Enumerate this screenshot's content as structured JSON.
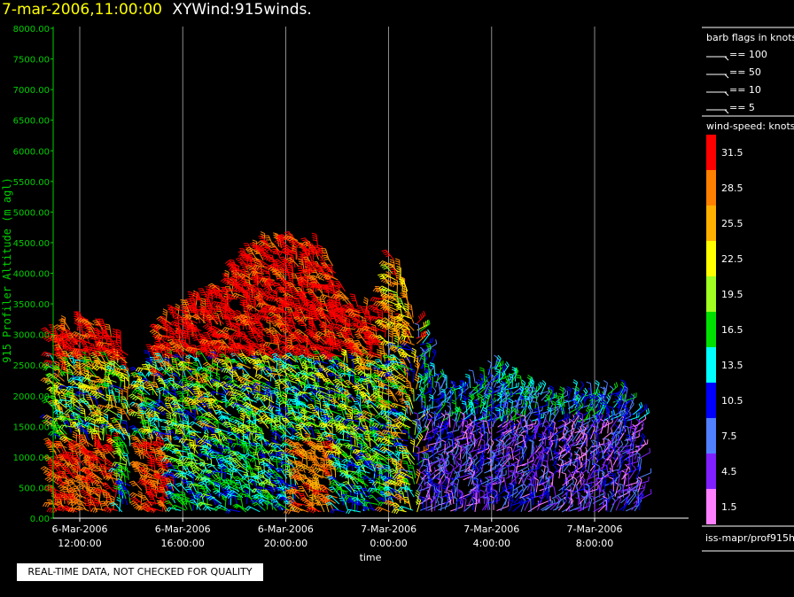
{
  "header": {
    "datetime": "7-mar-2006,11:00:00",
    "title": "XYWind:915winds."
  },
  "footer_note": "REAL-TIME DATA, NOT CHECKED FOR QUALITY",
  "source_label": "iss-mapr/prof915h",
  "chart_data": {
    "type": "wind-barbs",
    "ylabel": "915 Profiler Altitude (m agl)",
    "xlabel": "time",
    "ylim": [
      0,
      8000
    ],
    "y_ticks": [
      "0.00",
      "500.00",
      "1000.00",
      "1500.00",
      "2000.00",
      "2500.00",
      "3000.00",
      "3500.00",
      "4000.00",
      "4500.00",
      "5000.00",
      "5500.00",
      "6000.00",
      "6500.00",
      "7000.00",
      "7500.00",
      "8000.00"
    ],
    "x_range_hours": [
      10.5,
      22.8
    ],
    "x_ticks": [
      {
        "hour": 12,
        "line1": "6-Mar-2006",
        "line2": "12:00:00"
      },
      {
        "hour": 16,
        "line1": "6-Mar-2006",
        "line2": "16:00:00"
      },
      {
        "hour": 20,
        "line1": "6-Mar-2006",
        "line2": "20:00:00"
      },
      {
        "hour": 24,
        "line1": "7-Mar-2006",
        "line2": "0:00:00"
      },
      {
        "hour": 28,
        "line1": "7-Mar-2006",
        "line2": "4:00:00"
      },
      {
        "hour": 32,
        "line1": "7-Mar-2006",
        "line2": "8:00:00"
      }
    ],
    "profile_tops_m": [
      {
        "hour": 11.0,
        "top": 3000
      },
      {
        "hour": 12.0,
        "top": 3200
      },
      {
        "hour": 13.0,
        "top": 3150
      },
      {
        "hour": 14.5,
        "top": 2400
      },
      {
        "hour": 15.5,
        "top": 3300
      },
      {
        "hour": 16.5,
        "top": 3500
      },
      {
        "hour": 17.5,
        "top": 3700
      },
      {
        "hour": 18.5,
        "top": 4300
      },
      {
        "hour": 19.5,
        "top": 4500
      },
      {
        "hour": 20.5,
        "top": 4550
      },
      {
        "hour": 21.5,
        "top": 4400
      },
      {
        "hour": 22.5,
        "top": 3600
      },
      {
        "hour": 23.5,
        "top": 3300
      },
      {
        "hour": 24.3,
        "top": 4300
      },
      {
        "hour": 25.0,
        "top": 3300
      },
      {
        "hour": 26.0,
        "top": 2200
      },
      {
        "hour": 27.0,
        "top": 2100
      },
      {
        "hour": 28.0,
        "top": 2500
      },
      {
        "hour": 29.0,
        "top": 2200
      },
      {
        "hour": 30.0,
        "top": 2000
      },
      {
        "hour": 31.0,
        "top": 2000
      },
      {
        "hour": 32.0,
        "top": 2100
      },
      {
        "hour": 33.0,
        "top": 2100
      },
      {
        "hour": 33.8,
        "top": 1600
      }
    ],
    "barb_legend": {
      "title": "barb flags in knots",
      "entries": [
        "== 100",
        "== 50",
        "== 10",
        "== 5"
      ]
    },
    "colorbar": {
      "title": "wind-speed: knots",
      "levels": [
        {
          "label": "31.5",
          "color": "#ff0000"
        },
        {
          "label": "28.5",
          "color": "#ff8000"
        },
        {
          "label": "25.5",
          "color": "#ffb000"
        },
        {
          "label": "22.5",
          "color": "#ffff00"
        },
        {
          "label": "19.5",
          "color": "#a0ff20"
        },
        {
          "label": "16.5",
          "color": "#00e000"
        },
        {
          "label": "13.5",
          "color": "#00ffff"
        },
        {
          "label": "10.5",
          "color": "#0000ff"
        },
        {
          "label": "7.5",
          "color": "#5080ff"
        },
        {
          "label": "4.5",
          "color": "#8020ff"
        },
        {
          "label": "1.5",
          "color": "#ff80ff"
        }
      ]
    },
    "colors": {
      "axis": "#00d000",
      "grid": "#b0b0b0",
      "text": "#ffffff"
    }
  }
}
